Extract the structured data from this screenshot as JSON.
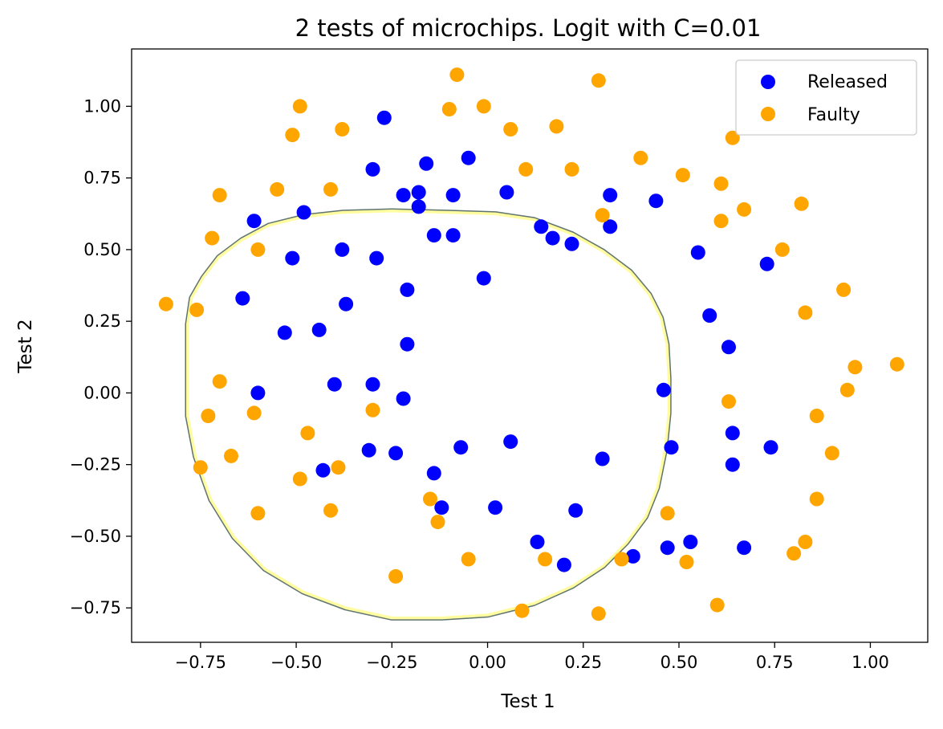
{
  "chart_data": {
    "type": "scatter",
    "title": "2 tests of microchips. Logit with C=0.01",
    "xlabel": "Test 1",
    "ylabel": "Test 2",
    "xlim": [
      -0.93,
      1.15
    ],
    "ylim": [
      -0.87,
      1.2
    ],
    "xticks": [
      -0.75,
      -0.5,
      -0.25,
      0.0,
      0.25,
      0.5,
      0.75,
      1.0
    ],
    "xtick_labels": [
      "−0.75",
      "−0.50",
      "−0.25",
      "0.00",
      "0.25",
      "0.50",
      "0.75",
      "1.00"
    ],
    "yticks": [
      -0.75,
      -0.5,
      -0.25,
      0.0,
      0.25,
      0.5,
      0.75,
      1.0
    ],
    "ytick_labels": [
      "−0.75",
      "−0.50",
      "−0.25",
      "0.00",
      "0.25",
      "0.50",
      "0.75",
      "1.00"
    ],
    "grid": false,
    "legend_position": "top-right",
    "series": [
      {
        "name": "Released",
        "color": "#0000ff",
        "points": [
          [
            -0.27,
            0.96
          ],
          [
            -0.05,
            0.82
          ],
          [
            -0.16,
            0.8
          ],
          [
            -0.3,
            0.78
          ],
          [
            0.05,
            0.7
          ],
          [
            -0.22,
            0.69
          ],
          [
            -0.18,
            0.7
          ],
          [
            -0.09,
            0.69
          ],
          [
            0.32,
            0.69
          ],
          [
            0.44,
            0.67
          ],
          [
            -0.18,
            0.65
          ],
          [
            -0.61,
            0.6
          ],
          [
            -0.48,
            0.63
          ],
          [
            0.14,
            0.58
          ],
          [
            0.32,
            0.58
          ],
          [
            -0.14,
            0.55
          ],
          [
            -0.09,
            0.55
          ],
          [
            0.17,
            0.54
          ],
          [
            0.22,
            0.52
          ],
          [
            0.55,
            0.49
          ],
          [
            -0.38,
            0.5
          ],
          [
            -0.51,
            0.47
          ],
          [
            -0.29,
            0.47
          ],
          [
            0.73,
            0.45
          ],
          [
            -0.01,
            0.4
          ],
          [
            -0.21,
            0.36
          ],
          [
            -0.64,
            0.33
          ],
          [
            -0.37,
            0.31
          ],
          [
            0.58,
            0.27
          ],
          [
            -0.44,
            0.22
          ],
          [
            -0.53,
            0.21
          ],
          [
            -0.21,
            0.17
          ],
          [
            0.63,
            0.16
          ],
          [
            -0.4,
            0.03
          ],
          [
            -0.3,
            0.03
          ],
          [
            -0.6,
            0.0
          ],
          [
            -0.22,
            -0.02
          ],
          [
            0.46,
            0.01
          ],
          [
            0.06,
            -0.17
          ],
          [
            -0.07,
            -0.19
          ],
          [
            0.48,
            -0.19
          ],
          [
            0.74,
            -0.19
          ],
          [
            0.64,
            -0.14
          ],
          [
            -0.31,
            -0.2
          ],
          [
            -0.24,
            -0.21
          ],
          [
            -0.43,
            -0.27
          ],
          [
            -0.14,
            -0.28
          ],
          [
            0.3,
            -0.23
          ],
          [
            0.64,
            -0.25
          ],
          [
            -0.12,
            -0.4
          ],
          [
            0.02,
            -0.4
          ],
          [
            0.23,
            -0.41
          ],
          [
            0.13,
            -0.52
          ],
          [
            0.53,
            -0.52
          ],
          [
            0.47,
            -0.54
          ],
          [
            0.67,
            -0.54
          ],
          [
            0.38,
            -0.57
          ],
          [
            0.2,
            -0.6
          ]
        ]
      },
      {
        "name": "Faulty",
        "color": "#ffa500",
        "points": [
          [
            -0.08,
            1.11
          ],
          [
            0.29,
            1.09
          ],
          [
            -0.49,
            1.0
          ],
          [
            -0.01,
            1.0
          ],
          [
            -0.1,
            0.99
          ],
          [
            -0.51,
            0.9
          ],
          [
            -0.38,
            0.92
          ],
          [
            0.06,
            0.92
          ],
          [
            0.18,
            0.93
          ],
          [
            0.64,
            0.89
          ],
          [
            0.4,
            0.82
          ],
          [
            0.1,
            0.78
          ],
          [
            0.22,
            0.78
          ],
          [
            0.51,
            0.76
          ],
          [
            -0.55,
            0.71
          ],
          [
            -0.41,
            0.71
          ],
          [
            -0.7,
            0.69
          ],
          [
            0.61,
            0.73
          ],
          [
            0.82,
            0.66
          ],
          [
            0.67,
            0.64
          ],
          [
            0.3,
            0.62
          ],
          [
            0.61,
            0.6
          ],
          [
            -0.72,
            0.54
          ],
          [
            -0.6,
            0.5
          ],
          [
            0.77,
            0.5
          ],
          [
            0.93,
            0.36
          ],
          [
            -0.84,
            0.31
          ],
          [
            -0.76,
            0.29
          ],
          [
            0.83,
            0.28
          ],
          [
            0.96,
            0.09
          ],
          [
            1.07,
            0.1
          ],
          [
            0.94,
            0.01
          ],
          [
            -0.7,
            0.04
          ],
          [
            -0.73,
            -0.08
          ],
          [
            -0.61,
            -0.07
          ],
          [
            -0.3,
            -0.06
          ],
          [
            0.63,
            -0.03
          ],
          [
            0.86,
            -0.08
          ],
          [
            -0.47,
            -0.14
          ],
          [
            -0.67,
            -0.22
          ],
          [
            0.9,
            -0.21
          ],
          [
            -0.75,
            -0.26
          ],
          [
            -0.39,
            -0.26
          ],
          [
            -0.49,
            -0.3
          ],
          [
            -0.15,
            -0.37
          ],
          [
            0.86,
            -0.37
          ],
          [
            -0.6,
            -0.42
          ],
          [
            -0.41,
            -0.41
          ],
          [
            0.47,
            -0.42
          ],
          [
            -0.13,
            -0.45
          ],
          [
            0.83,
            -0.52
          ],
          [
            0.8,
            -0.56
          ],
          [
            -0.05,
            -0.58
          ],
          [
            0.15,
            -0.58
          ],
          [
            0.35,
            -0.58
          ],
          [
            0.52,
            -0.59
          ],
          [
            -0.24,
            -0.64
          ],
          [
            0.6,
            -0.74
          ],
          [
            0.09,
            -0.76
          ],
          [
            0.29,
            -0.77
          ]
        ]
      }
    ],
    "decision_boundary": {
      "edge_color": "#5f7470",
      "fill_color": "#fffca0",
      "points": [
        [
          -0.78,
          0.1
        ],
        [
          -0.78,
          0.24
        ],
        [
          -0.77,
          0.33
        ],
        [
          -0.74,
          0.4
        ],
        [
          -0.7,
          0.47
        ],
        [
          -0.64,
          0.53
        ],
        [
          -0.57,
          0.58
        ],
        [
          -0.48,
          0.61
        ],
        [
          -0.38,
          0.625
        ],
        [
          -0.25,
          0.63
        ],
        [
          -0.1,
          0.625
        ],
        [
          0.02,
          0.62
        ],
        [
          0.12,
          0.6
        ],
        [
          0.22,
          0.55
        ],
        [
          0.3,
          0.49
        ],
        [
          0.37,
          0.42
        ],
        [
          0.42,
          0.34
        ],
        [
          0.45,
          0.26
        ],
        [
          0.465,
          0.17
        ],
        [
          0.47,
          0.05
        ],
        [
          0.47,
          -0.07
        ],
        [
          0.46,
          -0.2
        ],
        [
          0.44,
          -0.33
        ],
        [
          0.41,
          -0.43
        ],
        [
          0.36,
          -0.52
        ],
        [
          0.3,
          -0.6
        ],
        [
          0.22,
          -0.67
        ],
        [
          0.12,
          -0.73
        ],
        [
          0.0,
          -0.77
        ],
        [
          -0.12,
          -0.78
        ],
        [
          -0.25,
          -0.78
        ],
        [
          -0.37,
          -0.745
        ],
        [
          -0.48,
          -0.69
        ],
        [
          -0.58,
          -0.61
        ],
        [
          -0.66,
          -0.5
        ],
        [
          -0.72,
          -0.37
        ],
        [
          -0.76,
          -0.22
        ],
        [
          -0.78,
          -0.08
        ]
      ]
    }
  }
}
